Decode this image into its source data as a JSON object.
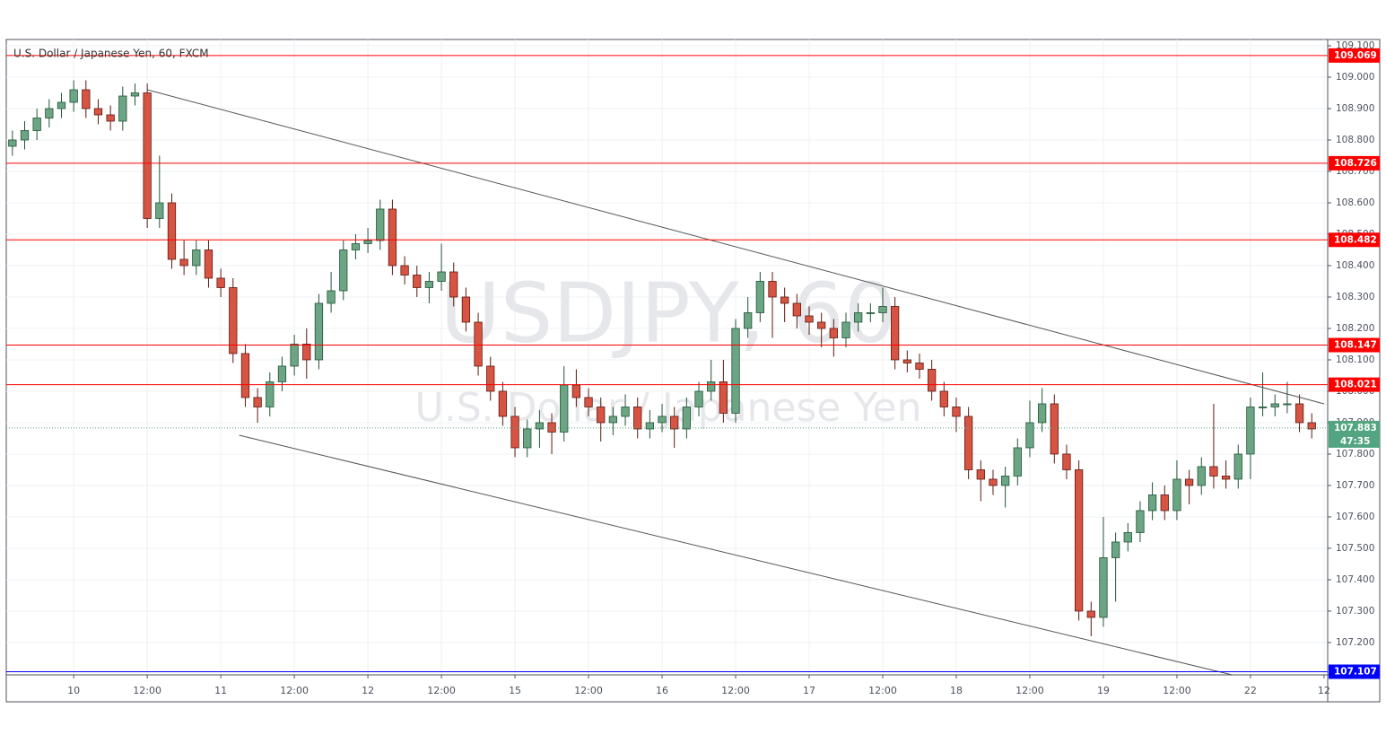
{
  "chart_data": {
    "type": "candlestick",
    "title": "U.S. Dollar / Japanese Yen, 60, FXCM",
    "watermark": {
      "symbol": "USDJPY, 60",
      "name": "U.S. Dollar / Japanese Yen"
    },
    "x": [
      -10,
      -8,
      -6,
      -4,
      -2,
      0,
      2,
      4,
      6,
      8,
      10,
      12,
      14,
      16,
      18,
      20,
      22,
      24,
      26,
      28,
      30,
      32,
      34,
      36,
      38,
      40,
      42,
      44,
      46,
      48,
      50,
      52,
      54,
      56,
      58,
      60,
      62,
      64,
      66,
      68,
      70,
      72,
      74,
      76,
      78,
      80,
      82,
      84,
      86,
      88,
      90,
      92,
      94,
      96,
      98,
      100,
      102,
      104,
      106,
      108,
      110,
      112,
      114,
      116,
      118,
      120,
      122,
      124,
      126,
      128,
      130,
      132,
      134,
      136,
      138,
      140,
      142,
      144,
      146,
      148,
      150,
      152,
      154,
      156,
      158,
      160,
      162,
      164,
      166,
      168,
      170,
      172,
      174,
      176,
      178,
      180,
      182,
      184,
      186,
      188,
      190,
      192,
      194,
      196,
      198,
      200,
      202
    ],
    "open": [
      108.78,
      108.8,
      108.83,
      108.87,
      108.9,
      108.92,
      108.96,
      108.9,
      108.88,
      108.86,
      108.94,
      108.95,
      108.55,
      108.6,
      108.42,
      108.4,
      108.45,
      108.36,
      108.33,
      108.12,
      107.98,
      107.95,
      108.03,
      108.08,
      108.15,
      108.1,
      108.28,
      108.32,
      108.45,
      108.47,
      108.48,
      108.58,
      108.4,
      108.37,
      108.33,
      108.35,
      108.38,
      108.3,
      108.22,
      108.08,
      108.0,
      107.92,
      107.82,
      107.88,
      107.9,
      107.87,
      108.02,
      107.98,
      107.95,
      107.9,
      107.92,
      107.95,
      107.88,
      107.9,
      107.92,
      107.88,
      107.95,
      108.0,
      108.03,
      107.93,
      108.2,
      108.25,
      108.35,
      108.3,
      108.28,
      108.24,
      108.22,
      108.2,
      108.17,
      108.22,
      108.25,
      108.25,
      108.27,
      108.1,
      108.09,
      108.07,
      108.0,
      107.95,
      107.92,
      107.75,
      107.72,
      107.7,
      107.73,
      107.82,
      107.9,
      107.96,
      107.8,
      107.75,
      107.3,
      107.28,
      107.47,
      107.52,
      107.55,
      107.62,
      107.67,
      107.62,
      107.72,
      107.7,
      107.76,
      107.73,
      107.72,
      107.8,
      107.95,
      107.95,
      107.96,
      107.96,
      107.9
    ],
    "high": [
      108.83,
      108.86,
      108.9,
      108.93,
      108.95,
      108.99,
      108.99,
      108.93,
      108.91,
      108.97,
      108.98,
      108.98,
      108.75,
      108.63,
      108.48,
      108.48,
      108.48,
      108.39,
      108.36,
      108.15,
      108.01,
      108.06,
      108.11,
      108.18,
      108.2,
      108.31,
      108.38,
      108.48,
      108.5,
      108.52,
      108.61,
      108.61,
      108.43,
      108.4,
      108.38,
      108.47,
      108.41,
      108.33,
      108.25,
      108.11,
      108.03,
      107.95,
      107.91,
      107.94,
      107.93,
      108.08,
      108.07,
      108.01,
      107.98,
      107.95,
      107.99,
      107.98,
      107.94,
      107.96,
      107.95,
      107.98,
      108.03,
      108.1,
      108.1,
      108.23,
      108.3,
      108.38,
      108.38,
      108.33,
      108.31,
      108.27,
      108.25,
      108.23,
      108.25,
      108.28,
      108.28,
      108.33,
      108.3,
      108.13,
      108.12,
      108.1,
      108.03,
      107.98,
      107.95,
      107.78,
      107.75,
      107.76,
      107.85,
      107.97,
      108.01,
      107.99,
      107.83,
      107.78,
      107.33,
      107.6,
      107.55,
      107.58,
      107.65,
      107.71,
      107.7,
      107.78,
      107.75,
      107.79,
      107.96,
      107.78,
      107.83,
      107.98,
      108.06,
      107.99,
      108.03,
      107.99,
      107.93
    ],
    "low": [
      108.75,
      108.77,
      108.8,
      108.84,
      108.87,
      108.89,
      108.87,
      108.85,
      108.83,
      108.83,
      108.91,
      108.52,
      108.52,
      108.39,
      108.37,
      108.37,
      108.33,
      108.3,
      108.09,
      107.95,
      107.9,
      107.92,
      108.0,
      108.05,
      108.04,
      108.07,
      108.25,
      108.29,
      108.42,
      108.44,
      108.45,
      108.37,
      108.34,
      108.3,
      108.28,
      108.32,
      108.27,
      108.19,
      108.05,
      107.97,
      107.89,
      107.79,
      107.79,
      107.82,
      107.8,
      107.84,
      107.95,
      107.92,
      107.84,
      107.86,
      107.89,
      107.85,
      107.85,
      107.87,
      107.82,
      107.85,
      107.92,
      107.97,
      107.9,
      107.9,
      108.17,
      108.22,
      108.17,
      108.22,
      108.2,
      108.18,
      108.14,
      108.11,
      108.14,
      108.19,
      108.22,
      108.22,
      108.07,
      108.06,
      108.04,
      107.97,
      107.92,
      107.87,
      107.72,
      107.65,
      107.67,
      107.63,
      107.7,
      107.79,
      107.87,
      107.77,
      107.72,
      107.27,
      107.22,
      107.25,
      107.33,
      107.49,
      107.52,
      107.59,
      107.59,
      107.59,
      107.64,
      107.67,
      107.69,
      107.69,
      107.69,
      107.72,
      107.92,
      107.92,
      107.93,
      107.87,
      107.85
    ],
    "close": [
      108.8,
      108.83,
      108.87,
      108.9,
      108.92,
      108.96,
      108.9,
      108.88,
      108.86,
      108.94,
      108.95,
      108.55,
      108.6,
      108.42,
      108.4,
      108.45,
      108.36,
      108.33,
      108.12,
      107.98,
      107.95,
      108.03,
      108.08,
      108.15,
      108.1,
      108.28,
      108.32,
      108.45,
      108.47,
      108.48,
      108.58,
      108.4,
      108.37,
      108.33,
      108.35,
      108.38,
      108.3,
      108.22,
      108.08,
      108.0,
      107.92,
      107.82,
      107.88,
      107.9,
      107.87,
      108.02,
      107.98,
      107.95,
      107.9,
      107.92,
      107.95,
      107.88,
      107.9,
      107.92,
      107.88,
      107.95,
      108.0,
      108.03,
      107.93,
      108.2,
      108.25,
      108.35,
      108.3,
      108.28,
      108.24,
      108.22,
      108.2,
      108.17,
      108.22,
      108.25,
      108.25,
      108.27,
      108.1,
      108.09,
      108.07,
      108.0,
      107.95,
      107.92,
      107.75,
      107.72,
      107.7,
      107.73,
      107.82,
      107.9,
      107.96,
      107.8,
      107.75,
      107.3,
      107.28,
      107.47,
      107.52,
      107.55,
      107.62,
      107.67,
      107.62,
      107.72,
      107.7,
      107.76,
      107.73,
      107.72,
      107.8,
      107.95,
      107.95,
      107.96,
      107.96,
      107.9,
      107.88
    ],
    "up_color": "#6ba583",
    "down_color": "#d75442",
    "xlim": [
      -11,
      204.6
    ],
    "ylim": [
      107.097,
      109.12
    ],
    "xticks": [
      {
        "value": 0,
        "label": "10"
      },
      {
        "value": 12,
        "label": "12:00"
      },
      {
        "value": 24,
        "label": "11"
      },
      {
        "value": 36,
        "label": "12:00"
      },
      {
        "value": 48,
        "label": "12"
      },
      {
        "value": 60,
        "label": "12:00"
      },
      {
        "value": 72,
        "label": "15"
      },
      {
        "value": 84,
        "label": "12:00"
      },
      {
        "value": 96,
        "label": "16"
      },
      {
        "value": 108,
        "label": "12:00"
      },
      {
        "value": 120,
        "label": "17"
      },
      {
        "value": 132,
        "label": "12:00"
      },
      {
        "value": 144,
        "label": "18"
      },
      {
        "value": 156,
        "label": "12:00"
      },
      {
        "value": 168,
        "label": "19"
      },
      {
        "value": 180,
        "label": "12:00"
      },
      {
        "value": 192,
        "label": "22"
      },
      {
        "value": 204,
        "label": "12"
      }
    ],
    "yticks": [
      {
        "value": 107.2,
        "label": "107.200"
      },
      {
        "value": 107.3,
        "label": "107.300"
      },
      {
        "value": 107.4,
        "label": "107.400"
      },
      {
        "value": 107.5,
        "label": "107.500"
      },
      {
        "value": 107.6,
        "label": "107.600"
      },
      {
        "value": 107.7,
        "label": "107.700"
      },
      {
        "value": 107.8,
        "label": "107.800"
      },
      {
        "value": 107.9,
        "label": "107.900"
      },
      {
        "value": 108.0,
        "label": "108.000"
      },
      {
        "value": 108.1,
        "label": "108.100"
      },
      {
        "value": 108.2,
        "label": "108.200"
      },
      {
        "value": 108.3,
        "label": "108.300"
      },
      {
        "value": 108.4,
        "label": "108.400"
      },
      {
        "value": 108.5,
        "label": "108.500"
      },
      {
        "value": 108.6,
        "label": "108.600"
      },
      {
        "value": 108.7,
        "label": "108.700"
      },
      {
        "value": 108.8,
        "label": "108.800"
      },
      {
        "value": 108.9,
        "label": "108.900"
      },
      {
        "value": 109.0,
        "label": "109.000"
      },
      {
        "value": 109.1,
        "label": "109.100"
      }
    ],
    "grid": true,
    "levels": [
      {
        "value": 109.069,
        "color": "#ff0000"
      },
      {
        "value": 108.726,
        "color": "#ff0000"
      },
      {
        "value": 108.482,
        "color": "#ff0000"
      },
      {
        "value": 108.147,
        "color": "#ff0000"
      },
      {
        "value": 108.021,
        "color": "#ff0000"
      },
      {
        "value": 107.107,
        "color": "#0000ff"
      }
    ],
    "current": {
      "value": 107.883,
      "countdown": "47:35",
      "color": "#53a582"
    },
    "trendlines": [
      {
        "x": [
          12,
          204
        ],
        "y": [
          108.96,
          107.96
        ],
        "color": "#555555"
      },
      {
        "x": [
          27,
          189
        ],
        "y": [
          107.86,
          107.097
        ],
        "color": "#555555"
      }
    ]
  }
}
